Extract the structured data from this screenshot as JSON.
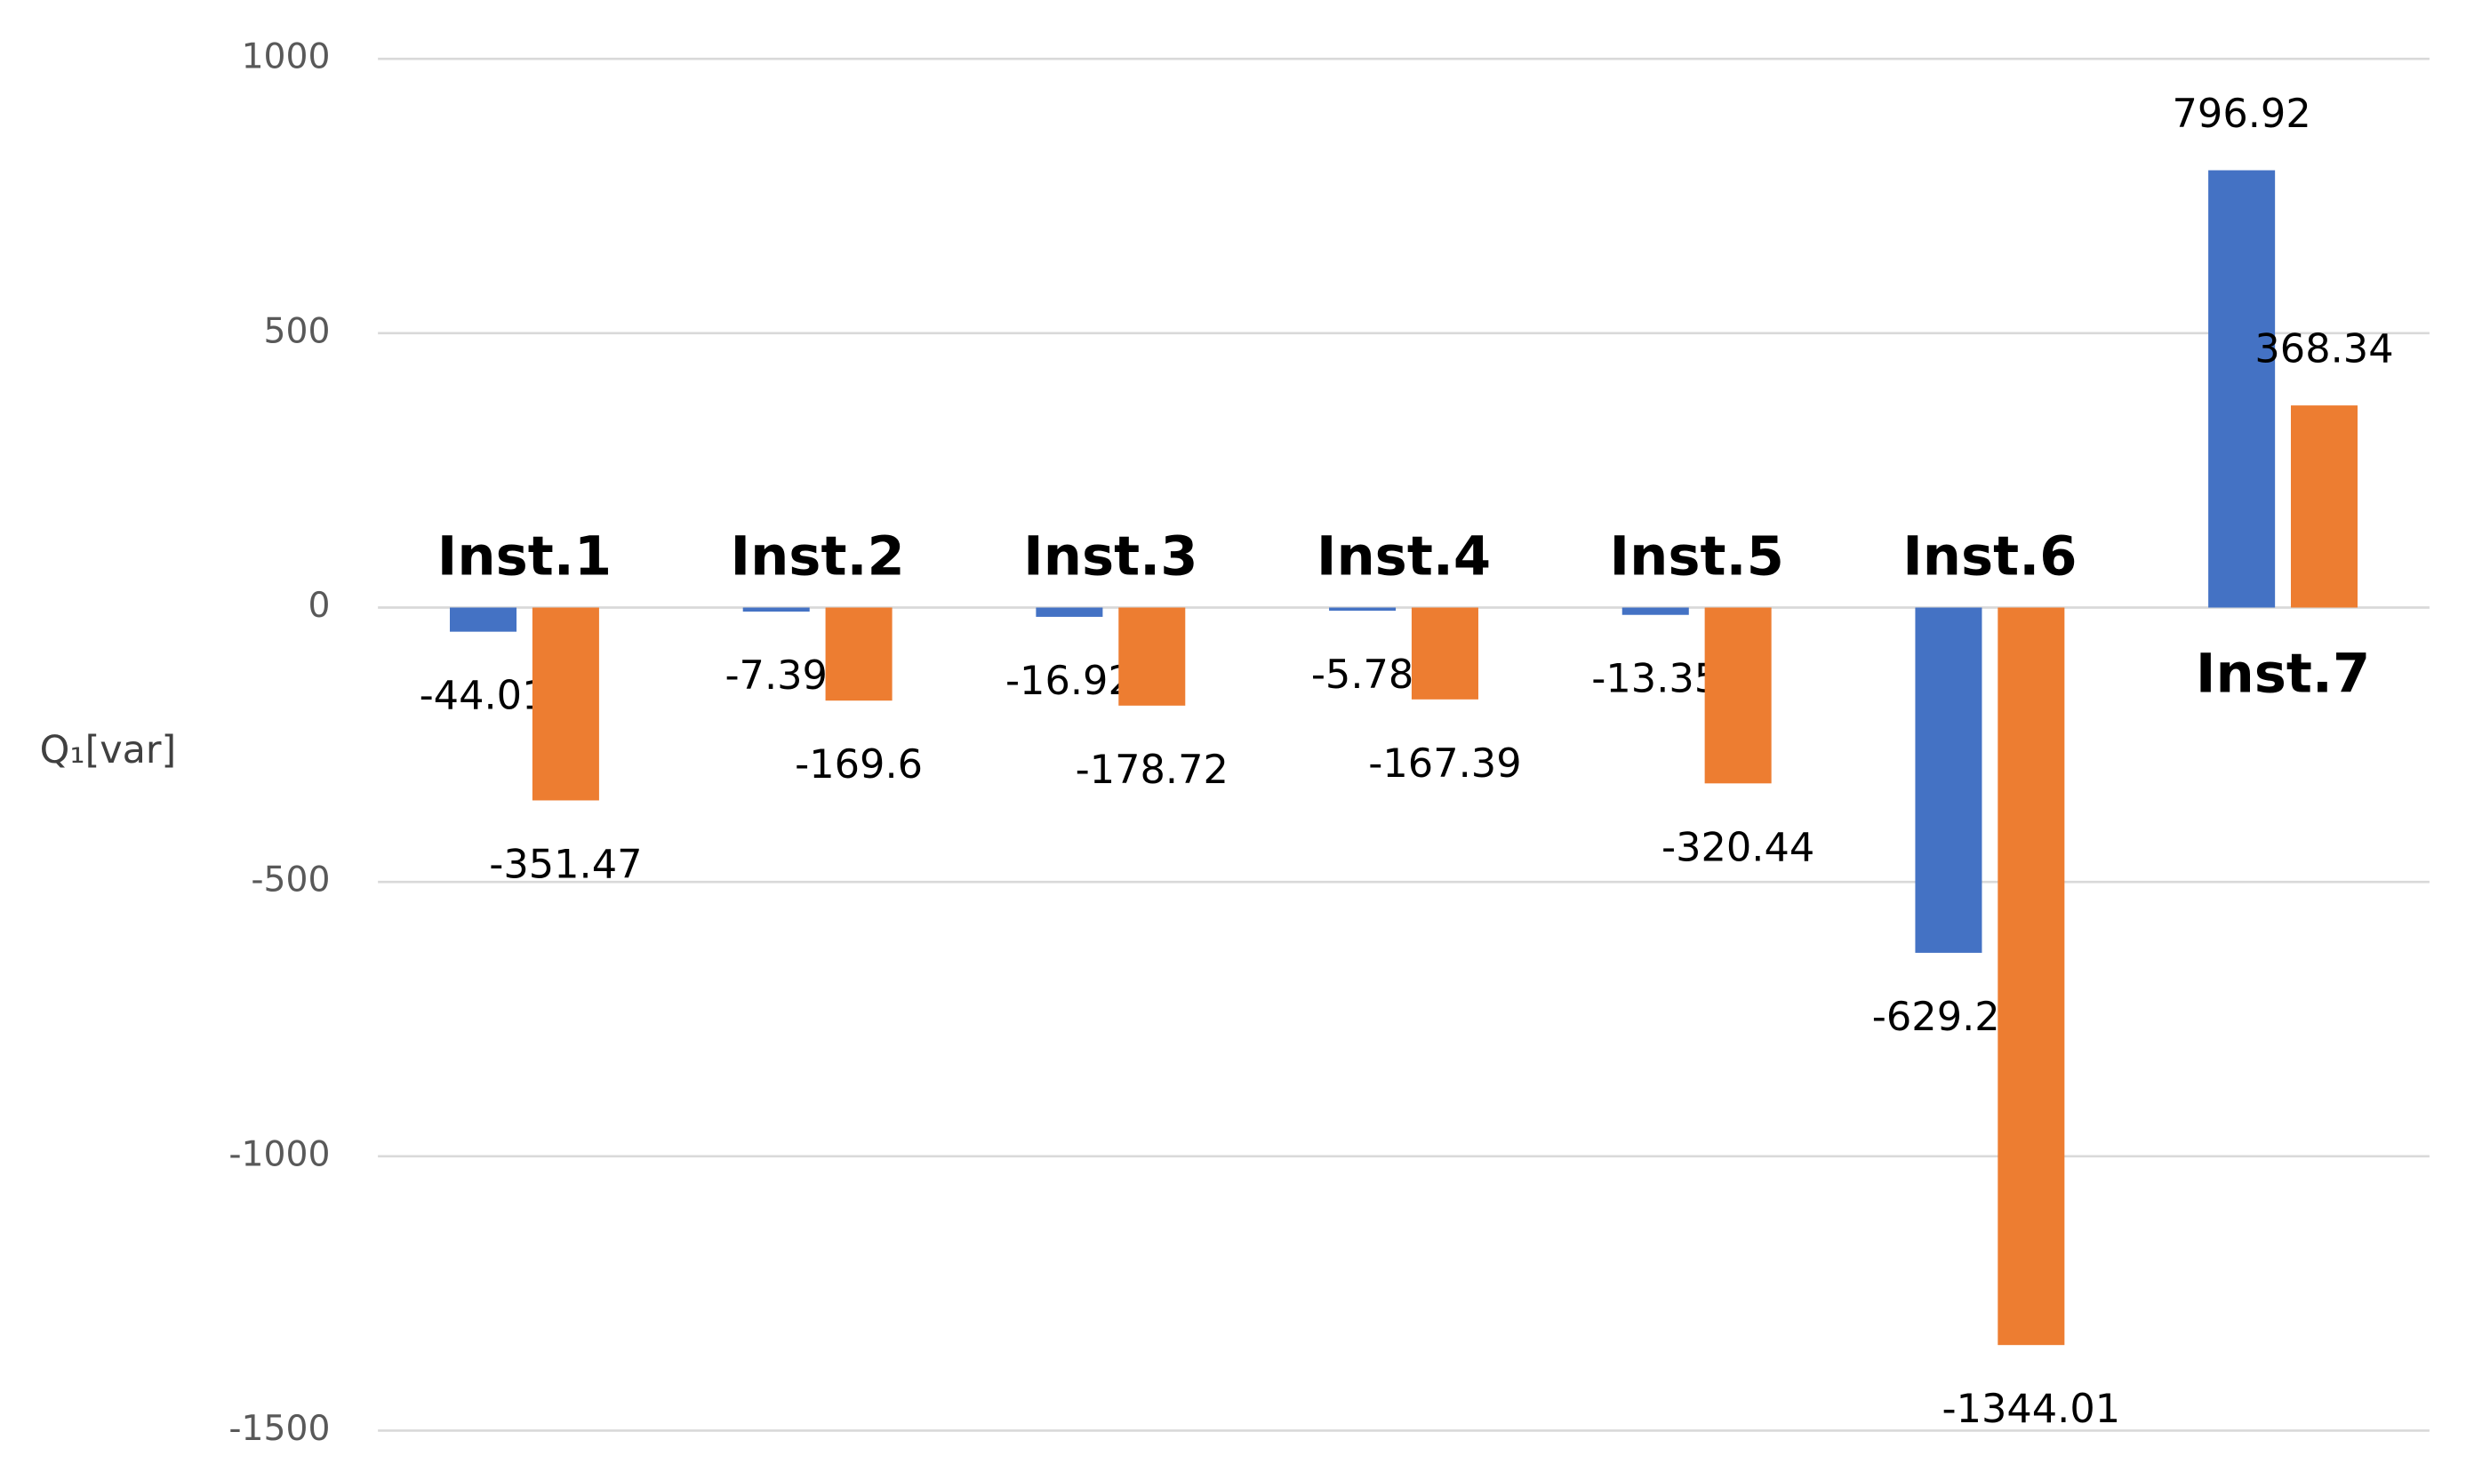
{
  "chart_data": {
    "type": "bar",
    "y_label": "Q₁[var]",
    "categories": [
      "Inst.1",
      "Inst.2",
      "Inst.3",
      "Inst.4",
      "Inst.5",
      "Inst.6",
      "Inst.7"
    ],
    "series": [
      {
        "color": "#4472c4",
        "values": [
          -44.01,
          -7.39,
          -16.92,
          -5.78,
          -13.35,
          -629.21,
          796.92
        ]
      },
      {
        "color": "#ed7d31",
        "values": [
          -351.47,
          -169.6,
          -178.72,
          -167.39,
          -320.44,
          -1344.01,
          368.34
        ]
      }
    ],
    "ylim": [
      -1500,
      1000
    ],
    "yticks": [
      -1500,
      -1000,
      -500,
      0,
      500,
      1000
    ],
    "grid": true
  }
}
